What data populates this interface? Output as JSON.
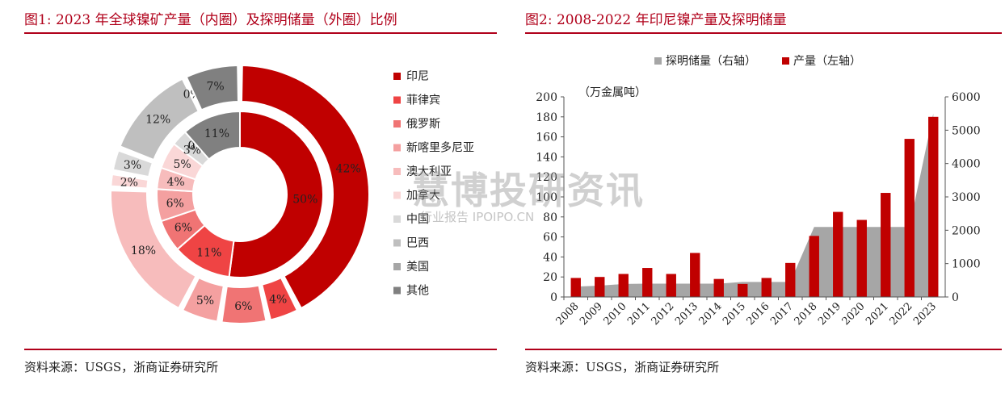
{
  "left_panel": {
    "title": "图1:  2023 年全球镍矿产量（内圈）及探明储量（外圈）比例",
    "source": "资料来源：USGS，浙商证券研究所"
  },
  "right_panel": {
    "title": "图2:  2008-2022 年印尼镍产量及探明储量",
    "source": "资料来源：USGS，浙商证券研究所"
  },
  "watermark": {
    "main": "慧博投研资讯",
    "sub": "行业报告 IPOIPO.CN"
  },
  "colors": {
    "accent_red": "#b0001a",
    "slices": [
      "#c00000",
      "#ef4444",
      "#f07474",
      "#f4a0a0",
      "#f7bcbc",
      "#fad7d7",
      "#d9d9d9",
      "#bfbfbf",
      "#a6a6a6",
      "#808080"
    ],
    "bar_red": "#c00000",
    "area_gray": "#a6a6a6"
  },
  "chart_data": [
    {
      "type": "pie",
      "variant": "double-donut",
      "legend_position": "right",
      "categories": [
        "印尼",
        "菲律宾",
        "俄罗斯",
        "新喀里多尼亚",
        "澳大利亚",
        "加拿大",
        "中国",
        "巴西",
        "美国",
        "其他"
      ],
      "series": [
        {
          "name": "内圈",
          "values": [
            50,
            11,
            6,
            6,
            4,
            5,
            3,
            0,
            0,
            11
          ]
        },
        {
          "name": "外圈",
          "values": [
            42,
            4,
            6,
            5,
            18,
            2,
            3,
            12,
            0,
            7
          ]
        }
      ]
    },
    {
      "type": "bar",
      "legend_position": "top",
      "categories": [
        "2008",
        "2009",
        "2010",
        "2011",
        "2012",
        "2013",
        "2014",
        "2015",
        "2016",
        "2017",
        "2018",
        "2019",
        "2020",
        "2021",
        "2022",
        "2023"
      ],
      "y_left_label": "（万金属吨）",
      "y_left_ticks": [
        0,
        20,
        40,
        60,
        80,
        100,
        120,
        140,
        160,
        180,
        200
      ],
      "y_right_ticks": [
        0,
        1000,
        2000,
        3000,
        4000,
        5000,
        6000
      ],
      "ylim_left": [
        0,
        200
      ],
      "ylim_right": [
        0,
        6000
      ],
      "grid": false,
      "series": [
        {
          "name": "探明储量（右轴）",
          "kind": "area",
          "axis": "right",
          "values": [
            310,
            340,
            390,
            400,
            400,
            400,
            400,
            450,
            450,
            450,
            2100,
            2100,
            2100,
            2100,
            2100,
            5500
          ]
        },
        {
          "name": "产量（左轴）",
          "kind": "bar",
          "axis": "left",
          "values": [
            19,
            20,
            23,
            29,
            23,
            44,
            18,
            13,
            19,
            34,
            61,
            85,
            77,
            104,
            158,
            180
          ]
        }
      ]
    }
  ]
}
